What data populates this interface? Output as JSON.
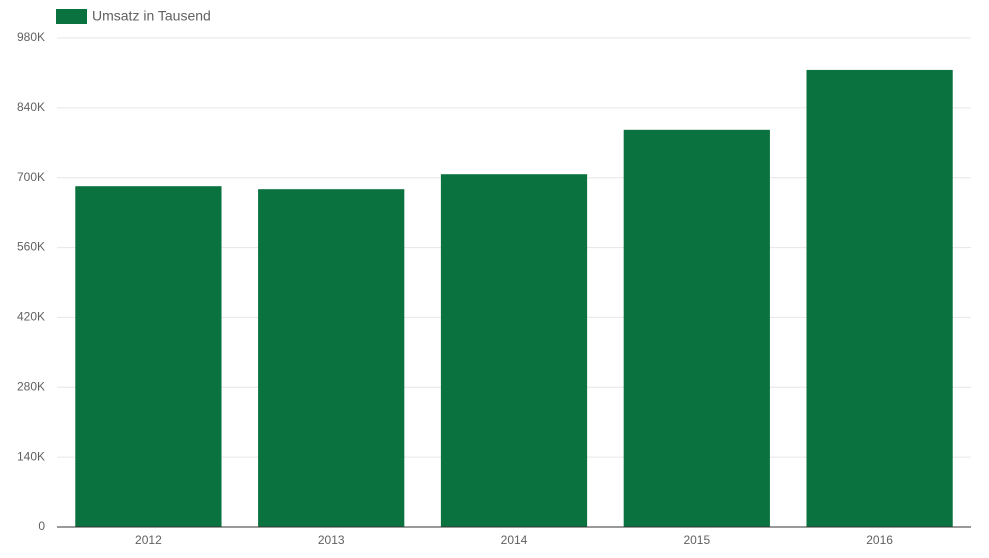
{
  "chart_data": {
    "type": "bar",
    "legend": "Umsatz in Tausend",
    "categories": [
      "2012",
      "2013",
      "2014",
      "2015",
      "2016"
    ],
    "values": [
      683000,
      677000,
      707000,
      796000,
      916000
    ],
    "color": "#0a723e",
    "ylim": [
      0,
      980000
    ],
    "yticks": [
      0,
      {
        "value": 140000,
        "label": "140K"
      },
      {
        "value": 280000,
        "label": "280K"
      },
      {
        "value": 420000,
        "label": "420K"
      },
      {
        "value": 560000,
        "label": "560K"
      },
      {
        "value": 700000,
        "label": "700K"
      },
      {
        "value": 840000,
        "label": "840K"
      },
      {
        "value": 980000,
        "label": "980K"
      }
    ],
    "grid": true,
    "legend_position": "top-left"
  }
}
